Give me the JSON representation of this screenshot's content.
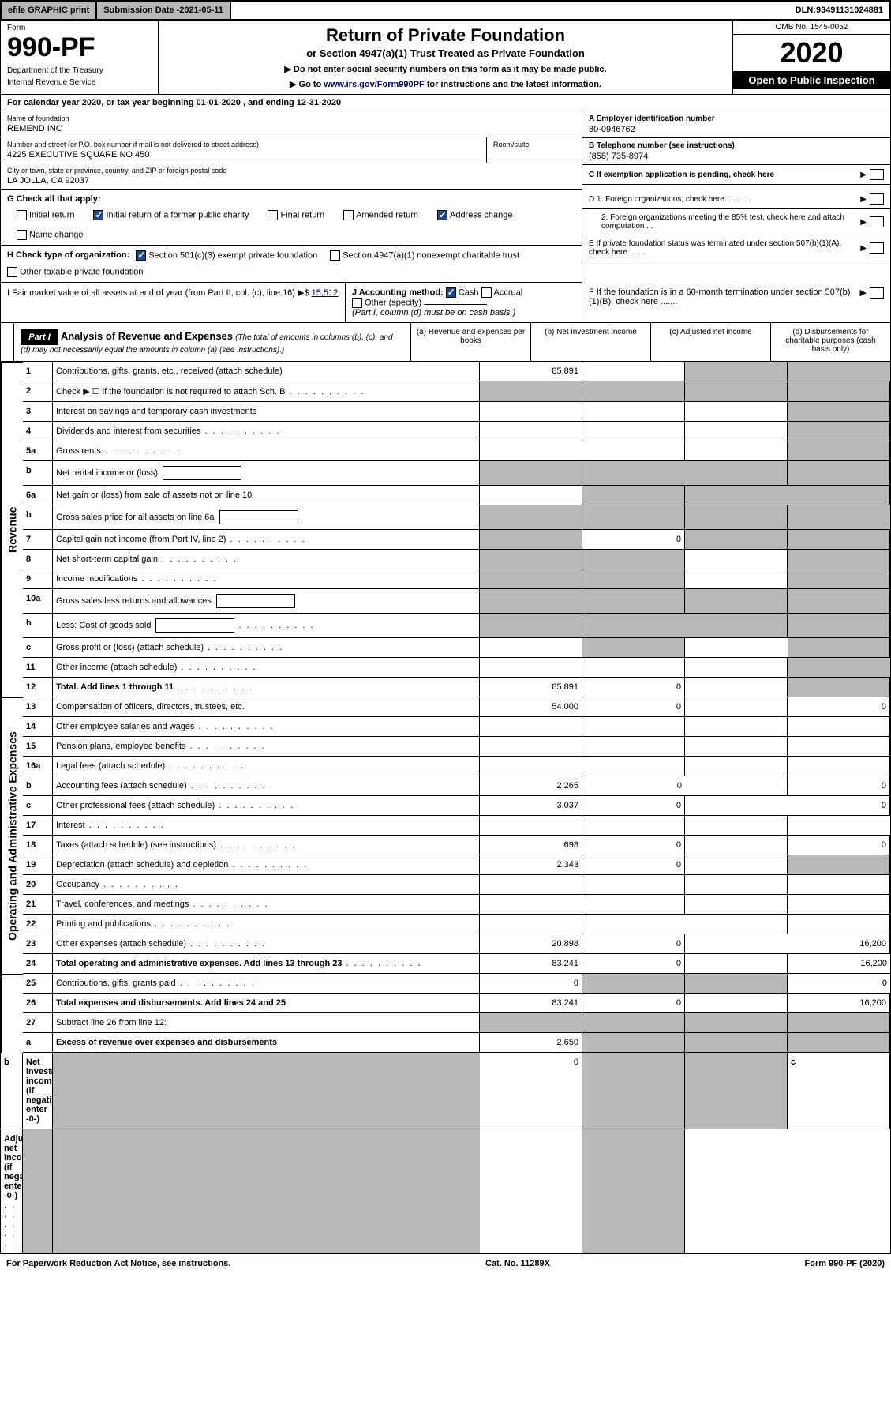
{
  "top": {
    "efile": "efile GRAPHIC print",
    "subdate_label": "Submission Date - ",
    "subdate": "2021-05-11",
    "dln_label": "DLN: ",
    "dln": "93491131024881"
  },
  "header": {
    "form_label": "Form",
    "form_number": "990-PF",
    "dept1": "Department of the Treasury",
    "dept2": "Internal Revenue Service",
    "title": "Return of Private Foundation",
    "subtitle": "or Section 4947(a)(1) Trust Treated as Private Foundation",
    "instr1": "▶ Do not enter social security numbers on this form as it may be made public.",
    "instr2_pre": "▶ Go to ",
    "instr2_link": "www.irs.gov/Form990PF",
    "instr2_post": " for instructions and the latest information.",
    "omb": "OMB No. 1545-0052",
    "year": "2020",
    "open": "Open to Public Inspection"
  },
  "calyear": "For calendar year 2020, or tax year beginning 01-01-2020            , and ending 12-31-2020",
  "info": {
    "name_label": "Name of foundation",
    "name": "REMEND INC",
    "addr_label": "Number and street (or P.O. box number if mail is not delivered to street address)",
    "addr": "4225 EXECUTIVE SQUARE NO 450",
    "room_label": "Room/suite",
    "city_label": "City or town, state or province, country, and ZIP or foreign postal code",
    "city": "LA JOLLA, CA  92037",
    "ein_label": "A Employer identification number",
    "ein": "80-0946762",
    "tel_label": "B Telephone number (see instructions)",
    "tel": "(858) 735-8974",
    "c_label": "C If exemption application is pending, check here",
    "d1": "D 1. Foreign organizations, check here............",
    "d2": "2. Foreign organizations meeting the 85% test, check here and attach computation ...",
    "e_label": "E  If private foundation status was terminated under section 507(b)(1)(A), check here .......",
    "f_label": "F  If the foundation is in a 60-month termination under section 507(b)(1)(B), check here .......",
    "g_label": "G Check all that apply:",
    "g_opts": [
      "Initial return",
      "Initial return of a former public charity",
      "Final return",
      "Amended return",
      "Address change",
      "Name change"
    ],
    "h_label": "H Check type of organization:",
    "h_opts": [
      "Section 501(c)(3) exempt private foundation",
      "Section 4947(a)(1) nonexempt charitable trust",
      "Other taxable private foundation"
    ],
    "i_label": "I Fair market value of all assets at end of year (from Part II, col. (c), line 16) ▶$ ",
    "i_val": "15,512",
    "j_label": "J Accounting method:",
    "j_opts": [
      "Cash",
      "Accrual",
      "Other (specify)"
    ],
    "j_note": "(Part I, column (d) must be on cash basis.)"
  },
  "part1": {
    "tag": "Part I",
    "title": "Analysis of Revenue and Expenses",
    "note": " (The total of amounts in columns (b), (c), and (d) may not necessarily equal the amounts in column (a) (see instructions).)",
    "cols": [
      "(a)  Revenue and expenses per books",
      "(b)  Net investment income",
      "(c)  Adjusted net income",
      "(d)  Disbursements for charitable purposes (cash basis only)"
    ]
  },
  "sides": {
    "rev": "Revenue",
    "exp": "Operating and Administrative Expenses"
  },
  "rows": [
    {
      "n": "1",
      "d": "Contributions, gifts, grants, etc., received (attach schedule)",
      "a": "85,891",
      "b": "",
      "c": "g",
      "e": "g"
    },
    {
      "n": "2",
      "d": "Check ▶ ☐ if the foundation is not required to attach Sch. B",
      "dots": 1,
      "a": "g",
      "b": "g",
      "c": "g",
      "e": "g"
    },
    {
      "n": "3",
      "d": "Interest on savings and temporary cash investments",
      "a": "",
      "b": "",
      "c": "",
      "e": "g"
    },
    {
      "n": "4",
      "d": "Dividends and interest from securities",
      "dots": 1,
      "a": "",
      "b": "",
      "c": "",
      "e": "g"
    },
    {
      "n": "5a",
      "d": "Gross rents",
      "dots": 1,
      "a": "",
      "b": "",
      "c": "",
      "e": "g"
    },
    {
      "n": "b",
      "d": "Net rental income or (loss)",
      "box": 1,
      "a": "g",
      "b": "g",
      "c": "g",
      "e": "g"
    },
    {
      "n": "6a",
      "d": "Net gain or (loss) from sale of assets not on line 10",
      "a": "",
      "b": "g",
      "c": "g",
      "e": "g"
    },
    {
      "n": "b",
      "d": "Gross sales price for all assets on line 6a",
      "box": 1,
      "a": "g",
      "b": "g",
      "c": "g",
      "e": "g"
    },
    {
      "n": "7",
      "d": "Capital gain net income (from Part IV, line 2)",
      "dots": 1,
      "a": "g",
      "b": "0",
      "c": "g",
      "e": "g"
    },
    {
      "n": "8",
      "d": "Net short-term capital gain",
      "dots": 1,
      "a": "g",
      "b": "g",
      "c": "",
      "e": "g"
    },
    {
      "n": "9",
      "d": "Income modifications",
      "dots": 1,
      "a": "g",
      "b": "g",
      "c": "",
      "e": "g"
    },
    {
      "n": "10a",
      "d": "Gross sales less returns and allowances",
      "box": 1,
      "a": "g",
      "b": "g",
      "c": "g",
      "e": "g"
    },
    {
      "n": "b",
      "d": "Less: Cost of goods sold",
      "dots": 1,
      "box": 1,
      "a": "g",
      "b": "g",
      "c": "g",
      "e": "g"
    },
    {
      "n": "c",
      "d": "Gross profit or (loss) (attach schedule)",
      "dots": 1,
      "a": "",
      "b": "g",
      "c": "",
      "e": "g"
    },
    {
      "n": "11",
      "d": "Other income (attach schedule)",
      "dots": 1,
      "a": "",
      "b": "",
      "c": "",
      "e": "g"
    },
    {
      "n": "12",
      "d": "Total. Add lines 1 through 11",
      "bold": 1,
      "dots": 1,
      "a": "85,891",
      "b": "0",
      "c": "",
      "e": "g"
    },
    {
      "n": "13",
      "d": "Compensation of officers, directors, trustees, etc.",
      "a": "54,000",
      "b": "0",
      "c": "",
      "e": "0"
    },
    {
      "n": "14",
      "d": "Other employee salaries and wages",
      "dots": 1,
      "a": "",
      "b": "",
      "c": "",
      "e": ""
    },
    {
      "n": "15",
      "d": "Pension plans, employee benefits",
      "dots": 1,
      "a": "",
      "b": "",
      "c": "",
      "e": ""
    },
    {
      "n": "16a",
      "d": "Legal fees (attach schedule)",
      "dots": 1,
      "a": "",
      "b": "",
      "c": "",
      "e": ""
    },
    {
      "n": "b",
      "d": "Accounting fees (attach schedule)",
      "dots": 1,
      "a": "2,265",
      "b": "0",
      "c": "",
      "e": "0"
    },
    {
      "n": "c",
      "d": "Other professional fees (attach schedule)",
      "dots": 1,
      "a": "3,037",
      "b": "0",
      "c": "",
      "e": "0"
    },
    {
      "n": "17",
      "d": "Interest",
      "dots": 1,
      "a": "",
      "b": "",
      "c": "",
      "e": ""
    },
    {
      "n": "18",
      "d": "Taxes (attach schedule) (see instructions)",
      "dots": 1,
      "a": "698",
      "b": "0",
      "c": "",
      "e": "0"
    },
    {
      "n": "19",
      "d": "Depreciation (attach schedule) and depletion",
      "dots": 1,
      "a": "2,343",
      "b": "0",
      "c": "",
      "e": "g"
    },
    {
      "n": "20",
      "d": "Occupancy",
      "dots": 1,
      "a": "",
      "b": "",
      "c": "",
      "e": ""
    },
    {
      "n": "21",
      "d": "Travel, conferences, and meetings",
      "dots": 1,
      "a": "",
      "b": "",
      "c": "",
      "e": ""
    },
    {
      "n": "22",
      "d": "Printing and publications",
      "dots": 1,
      "a": "",
      "b": "",
      "c": "",
      "e": ""
    },
    {
      "n": "23",
      "d": "Other expenses (attach schedule)",
      "dots": 1,
      "a": "20,898",
      "b": "0",
      "c": "",
      "e": "16,200"
    },
    {
      "n": "24",
      "d": "Total operating and administrative expenses. Add lines 13 through 23",
      "bold": 1,
      "dots": 1,
      "a": "83,241",
      "b": "0",
      "c": "",
      "e": "16,200"
    },
    {
      "n": "25",
      "d": "Contributions, gifts, grants paid",
      "dots": 1,
      "a": "0",
      "b": "g",
      "c": "g",
      "e": "0"
    },
    {
      "n": "26",
      "d": "Total expenses and disbursements. Add lines 24 and 25",
      "bold": 1,
      "a": "83,241",
      "b": "0",
      "c": "",
      "e": "16,200"
    },
    {
      "n": "27",
      "d": "Subtract line 26 from line 12:",
      "a": "g",
      "b": "g",
      "c": "g",
      "e": "g"
    },
    {
      "n": "a",
      "d": "Excess of revenue over expenses and disbursements",
      "bold": 1,
      "a": "2,650",
      "b": "g",
      "c": "g",
      "e": "g"
    },
    {
      "n": "b",
      "d": "Net investment income (if negative, enter -0-)",
      "bold": 1,
      "a": "g",
      "b": "0",
      "c": "g",
      "e": "g"
    },
    {
      "n": "c",
      "d": "Adjusted net income (if negative, enter -0-)",
      "bold": 1,
      "dots": 1,
      "a": "g",
      "b": "g",
      "c": "",
      "e": "g"
    }
  ],
  "footer": {
    "left": "For Paperwork Reduction Act Notice, see instructions.",
    "mid": "Cat. No. 11289X",
    "right": "Form 990-PF (2020)"
  }
}
